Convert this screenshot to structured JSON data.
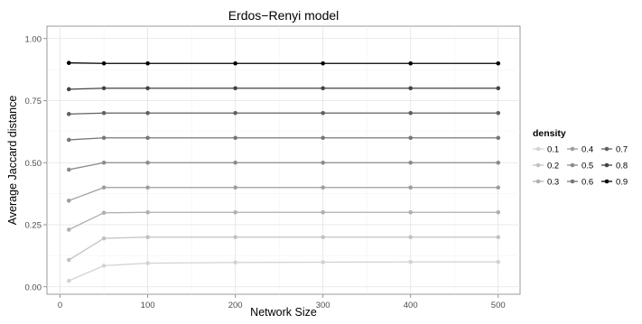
{
  "chart_data": {
    "type": "line",
    "title": "Erdos−Renyi model",
    "xlabel": "Network Size",
    "ylabel": "Average Jaccard distance",
    "x": [
      10,
      50,
      100,
      200,
      300,
      400,
      500
    ],
    "xlim": [
      -15,
      525
    ],
    "ylim": [
      -0.03,
      1.05
    ],
    "xticks": [
      0,
      100,
      200,
      300,
      400,
      500
    ],
    "xtick_labels": [
      "0",
      "100",
      "200",
      "300",
      "400",
      "500"
    ],
    "yticks": [
      0,
      0.25,
      0.5,
      0.75,
      1.0
    ],
    "ytick_labels": [
      "0.00",
      "0.25",
      "0.50",
      "0.75",
      "1.00"
    ],
    "grid": true,
    "legend": {
      "title": "density",
      "placement": "right",
      "columns": 3
    },
    "series": [
      {
        "name": "0.1",
        "color": "#d3d3d3",
        "values": [
          0.024,
          0.085,
          0.095,
          0.098,
          0.099,
          0.1,
          0.1
        ]
      },
      {
        "name": "0.2",
        "color": "#c2c2c2",
        "values": [
          0.108,
          0.195,
          0.2,
          0.2,
          0.2,
          0.2,
          0.2
        ]
      },
      {
        "name": "0.3",
        "color": "#b0b0b0",
        "values": [
          0.23,
          0.298,
          0.3,
          0.3,
          0.3,
          0.3,
          0.3
        ]
      },
      {
        "name": "0.4",
        "color": "#9e9e9e",
        "values": [
          0.347,
          0.4,
          0.4,
          0.4,
          0.4,
          0.4,
          0.4
        ]
      },
      {
        "name": "0.5",
        "color": "#8b8b8b",
        "values": [
          0.472,
          0.5,
          0.5,
          0.5,
          0.5,
          0.5,
          0.5
        ]
      },
      {
        "name": "0.6",
        "color": "#777777",
        "values": [
          0.592,
          0.6,
          0.6,
          0.6,
          0.6,
          0.6,
          0.6
        ]
      },
      {
        "name": "0.7",
        "color": "#606060",
        "values": [
          0.696,
          0.7,
          0.7,
          0.7,
          0.7,
          0.7,
          0.7
        ]
      },
      {
        "name": "0.8",
        "color": "#444444",
        "values": [
          0.796,
          0.8,
          0.8,
          0.8,
          0.8,
          0.8,
          0.8
        ]
      },
      {
        "name": "0.9",
        "color": "#000000",
        "values": [
          0.902,
          0.9,
          0.9,
          0.9,
          0.9,
          0.9,
          0.9
        ]
      }
    ]
  }
}
